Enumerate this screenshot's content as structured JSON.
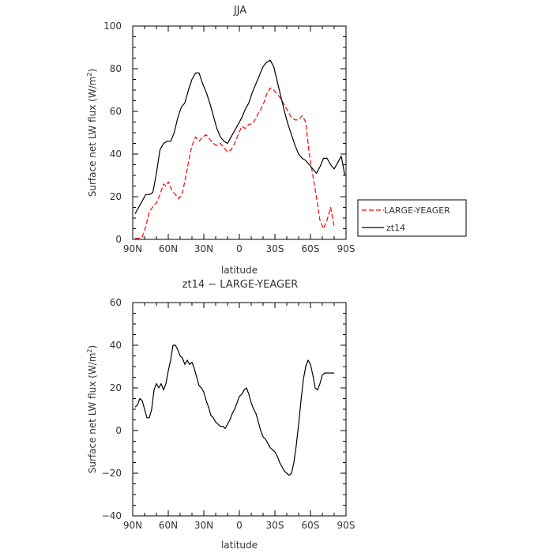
{
  "chart_data": [
    {
      "type": "line",
      "title": "JJA",
      "xlabel": "latitude",
      "ylabel": "Surface net LW flux (W/m²)",
      "ylabel_main": "Surface net LW flux (W/m",
      "ylabel_sup": "2",
      "ylabel_end": ")",
      "xlim": [
        90,
        -90
      ],
      "ylim": [
        0,
        100
      ],
      "x_ticks": [
        90,
        60,
        30,
        0,
        -30,
        -60,
        -90
      ],
      "x_tick_labels": [
        "90N",
        "60N",
        "30N",
        "0",
        "30S",
        "60S",
        "90S"
      ],
      "y_ticks": [
        0,
        20,
        40,
        60,
        80,
        100
      ],
      "y_tick_labels": [
        "0",
        "20",
        "40",
        "60",
        "80",
        "100"
      ],
      "legend_position": "outside-right",
      "series": [
        {
          "name": "LARGE-YEAGER",
          "color": "#ff0000",
          "dash": "dashed",
          "x": [
            88,
            85,
            82,
            79,
            76,
            72,
            70,
            67,
            64,
            62,
            60,
            57,
            54,
            51,
            48,
            45,
            42,
            40,
            37,
            34,
            31,
            28,
            25,
            22,
            19,
            16,
            13,
            10,
            7,
            4,
            1,
            -2,
            -5,
            -8,
            -11,
            -14,
            -17,
            -20,
            -23,
            -26,
            -29,
            -32,
            -35,
            -38,
            -41,
            -44,
            -47,
            -50,
            -53,
            -56,
            -59,
            -62,
            -65,
            -68,
            -71,
            -74,
            -77,
            -80
          ],
          "y": [
            0.5,
            0.5,
            1,
            6,
            13,
            16,
            17,
            21,
            26,
            25,
            27,
            23,
            21,
            19,
            22,
            30,
            39,
            44,
            48,
            46,
            48,
            49,
            47,
            45,
            44,
            45,
            43,
            41,
            42,
            45,
            49,
            53,
            52,
            54,
            54,
            57,
            60,
            63,
            68,
            71,
            70,
            68,
            66,
            63,
            60,
            57,
            56,
            56,
            58,
            55,
            40,
            30,
            20,
            9,
            5,
            9,
            15,
            6
          ]
        },
        {
          "name": "zt14",
          "color": "#000000",
          "dash": "solid",
          "x": [
            88,
            85,
            82,
            79,
            76,
            73,
            70,
            67,
            64,
            61,
            58,
            55,
            52,
            49,
            46,
            43,
            40,
            37,
            34,
            31,
            28,
            25,
            22,
            19,
            16,
            13,
            10,
            7,
            4,
            1,
            -2,
            -5,
            -8,
            -11,
            -14,
            -17,
            -20,
            -23,
            -26,
            -29,
            -32,
            -35,
            -38,
            -41,
            -44,
            -47,
            -50,
            -53,
            -56,
            -59,
            -62,
            -65,
            -68,
            -71,
            -74,
            -77,
            -80,
            -83,
            -86,
            -89
          ],
          "y": [
            12,
            15,
            18,
            21,
            21,
            22,
            31,
            42,
            45,
            46,
            46,
            50,
            57,
            62,
            64,
            70,
            75,
            78,
            78,
            73,
            69,
            64,
            58,
            52,
            48,
            46,
            45,
            48,
            51,
            54,
            57,
            61,
            64,
            69,
            73,
            77,
            81,
            83,
            84,
            81,
            74,
            67,
            60,
            54,
            49,
            44,
            40,
            38,
            37,
            35,
            33,
            31,
            34,
            38,
            38,
            35,
            33,
            36,
            39,
            30
          ]
        }
      ]
    },
    {
      "type": "line",
      "title": "zt14 − LARGE-YEAGER",
      "xlabel": "latitude",
      "ylabel": "Surface net LW flux (W/m²)",
      "ylabel_main": "Surface net LW flux (W/m",
      "ylabel_sup": "2",
      "ylabel_end": ")",
      "xlim": [
        90,
        -90
      ],
      "ylim": [
        -40,
        60
      ],
      "x_ticks": [
        90,
        60,
        30,
        0,
        -30,
        -60,
        -90
      ],
      "x_tick_labels": [
        "90N",
        "60N",
        "30N",
        "0",
        "30S",
        "60S",
        "90S"
      ],
      "y_ticks": [
        -40,
        -20,
        0,
        20,
        40,
        60
      ],
      "y_tick_labels": [
        "−40",
        "−20",
        "0",
        "20",
        "40",
        "60"
      ],
      "series": [
        {
          "color": "#000000",
          "dash": "solid",
          "x": [
            88,
            86,
            84,
            82,
            80,
            78,
            76,
            74,
            72,
            70,
            68,
            66,
            64,
            62,
            60,
            58,
            56,
            54,
            52,
            50,
            48,
            46,
            44,
            42,
            40,
            38,
            36,
            34,
            32,
            30,
            28,
            26,
            24,
            22,
            20,
            18,
            16,
            14,
            12,
            10,
            8,
            6,
            4,
            2,
            0,
            -2,
            -4,
            -6,
            -8,
            -10,
            -12,
            -14,
            -16,
            -18,
            -20,
            -22,
            -24,
            -26,
            -28,
            -30,
            -32,
            -34,
            -36,
            -38,
            -40,
            -42,
            -44,
            -46,
            -48,
            -50,
            -52,
            -54,
            -56,
            -58,
            -60,
            -62,
            -64,
            -66,
            -68,
            -70,
            -72,
            -74,
            -76,
            -78,
            -80
          ],
          "y": [
            11,
            12,
            15,
            14,
            10,
            6,
            6,
            10,
            19,
            22,
            20,
            22,
            19,
            22,
            28,
            33,
            40,
            40,
            38,
            35,
            34,
            31,
            33,
            31,
            32,
            29,
            25,
            21,
            20,
            18,
            14,
            11,
            7,
            6,
            4,
            3,
            2,
            2,
            1,
            3,
            5,
            8,
            10,
            13,
            16,
            17,
            19,
            20,
            17,
            13,
            10,
            8,
            4,
            0,
            -3,
            -4,
            -6,
            -8,
            -9,
            -10,
            -12,
            -15,
            -17,
            -19,
            -20,
            -21,
            -20,
            -15,
            -7,
            3,
            14,
            24,
            30,
            33,
            31,
            26,
            20,
            19,
            22,
            26,
            27,
            27,
            27,
            27,
            27
          ]
        }
      ]
    }
  ]
}
